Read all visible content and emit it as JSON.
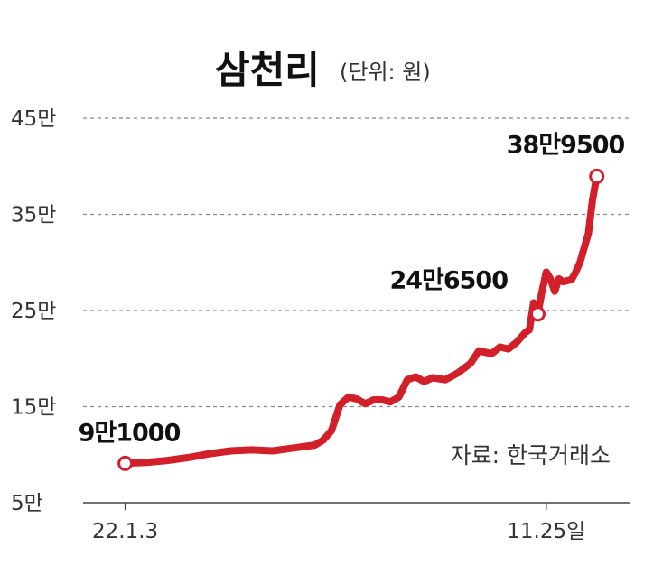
{
  "chart_data": {
    "type": "line",
    "title": "삼천리",
    "unit": "(단위: 원)",
    "source": "자료: 한국거래소",
    "y_ticks": [
      {
        "value": 50000,
        "label": "5만"
      },
      {
        "value": 150000,
        "label": "15만"
      },
      {
        "value": 250000,
        "label": "25만"
      },
      {
        "value": 350000,
        "label": "35만"
      },
      {
        "value": 450000,
        "label": "45만"
      }
    ],
    "ylim": [
      50000,
      450000
    ],
    "x_ticks": [
      {
        "index": 0,
        "label": "22.1.3"
      },
      {
        "index": 100,
        "label": "11.25일"
      }
    ],
    "xlim": [
      -10,
      120
    ],
    "grid": true,
    "colors": {
      "series": "#d1202a",
      "grid": "#888888"
    },
    "series": [
      {
        "values": [
          [
            0,
            91000
          ],
          [
            5,
            92000
          ],
          [
            10,
            94000
          ],
          [
            15,
            97000
          ],
          [
            20,
            101000
          ],
          [
            25,
            104000
          ],
          [
            30,
            105000
          ],
          [
            35,
            104000
          ],
          [
            40,
            107000
          ],
          [
            45,
            110000
          ],
          [
            47,
            115000
          ],
          [
            49,
            125000
          ],
          [
            51,
            152000
          ],
          [
            53,
            160000
          ],
          [
            55,
            158000
          ],
          [
            57,
            153000
          ],
          [
            59,
            157000
          ],
          [
            61,
            157000
          ],
          [
            63,
            155000
          ],
          [
            65,
            160000
          ],
          [
            67,
            178000
          ],
          [
            69,
            181000
          ],
          [
            71,
            176000
          ],
          [
            73,
            180000
          ],
          [
            76,
            178000
          ],
          [
            79,
            185000
          ],
          [
            82,
            195000
          ],
          [
            84,
            208000
          ],
          [
            87,
            205000
          ],
          [
            89,
            212000
          ],
          [
            91,
            210000
          ],
          [
            93,
            217000
          ],
          [
            95,
            227000
          ],
          [
            96,
            230000
          ],
          [
            97,
            258000
          ],
          [
            98,
            246500
          ],
          [
            99,
            270000
          ],
          [
            100,
            290000
          ],
          [
            101,
            283000
          ],
          [
            102,
            270000
          ],
          [
            103,
            283000
          ],
          [
            104,
            280000
          ],
          [
            106,
            282000
          ],
          [
            107,
            290000
          ],
          [
            108,
            300000
          ],
          [
            109,
            315000
          ],
          [
            110,
            330000
          ],
          [
            111,
            365000
          ],
          [
            112,
            389500
          ]
        ]
      }
    ],
    "annotations": [
      {
        "index": 0,
        "value": 91000,
        "label": "9만1000"
      },
      {
        "index": 98,
        "value": 246500,
        "label": "24만6500"
      },
      {
        "index": 112,
        "value": 389500,
        "label": "38만9500"
      }
    ]
  }
}
